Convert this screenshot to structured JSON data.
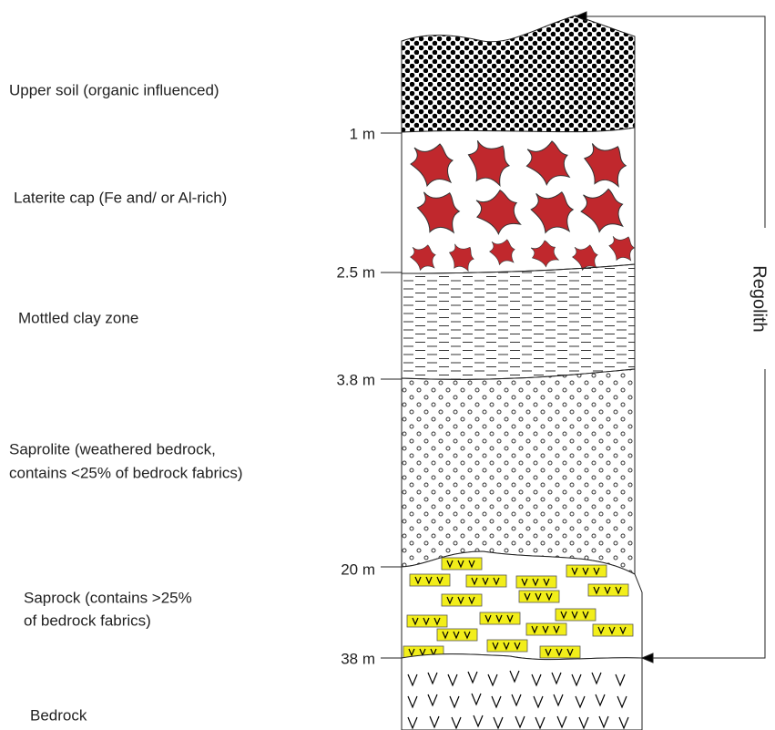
{
  "layers": [
    {
      "label": [
        "Upper soil (organic influenced)"
      ]
    },
    {
      "label": [
        "Laterite cap (Fe and/ or Al-rich)"
      ]
    },
    {
      "label": [
        "Mottled clay zone"
      ]
    },
    {
      "label": [
        "Saprolite (weathered bedrock,",
        "contains <25% of bedrock fabrics)"
      ]
    },
    {
      "label": [
        "Saprock (contains >25%",
        "of bedrock fabrics)"
      ]
    },
    {
      "label": [
        "Bedrock"
      ]
    }
  ],
  "depths": [
    "1 m",
    "2.5 m",
    "3.8 m",
    "20 m",
    "38 m"
  ],
  "regolith": "Regolith"
}
